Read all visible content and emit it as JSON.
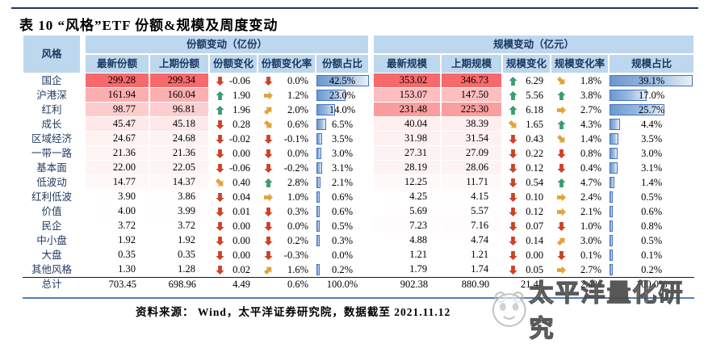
{
  "title": "表 10  “风格”ETF 份额&规模及周度变动",
  "footer": "资料来源： Wind，太平洋证券研究院，数据截至 2021.11.12",
  "watermark": "太平洋量化研究",
  "colors": {
    "header_bg": "#BDD7EE",
    "header_text": "#17375E",
    "heat_max": "#F8696B",
    "bar_border": "#4472C4",
    "arrow_up": "#3A9D6E",
    "arrow_down": "#CE4125",
    "arrow_mid": "#E3A33C",
    "top_rule": "#1F3864",
    "bottom_rule": "#4F81BD"
  },
  "table": {
    "style_header": "风格",
    "group_share": "份额变动（亿份）",
    "group_scale": "规模变动（亿元）",
    "share_headers": [
      "最新份额",
      "上期份额",
      "份额变化",
      "份额变化率",
      "份额占比"
    ],
    "scale_headers": [
      "最新规模",
      "上期规模",
      "规模变化",
      "规模变化率",
      "规模占比"
    ],
    "rows": [
      {
        "name": "国企",
        "s_new": "299.28",
        "s_prev": "299.34",
        "s_chg": "-0.06",
        "s_chg_ic": "down",
        "s_rate": "0.0%",
        "s_rate_ic": "down",
        "s_pct": "42.5%",
        "m_new": "353.02",
        "m_prev": "346.73",
        "m_chg": "6.29",
        "m_chg_ic": "up",
        "m_rate": "1.8%",
        "m_rate_ic": "se",
        "m_pct": "39.1%"
      },
      {
        "name": "沪港深",
        "s_new": "161.94",
        "s_prev": "160.04",
        "s_chg": "1.90",
        "s_chg_ic": "up",
        "s_rate": "1.2%",
        "s_rate_ic": "right",
        "s_pct": "23.0%",
        "m_new": "153.07",
        "m_prev": "147.50",
        "m_chg": "5.56",
        "m_chg_ic": "up",
        "m_rate": "3.8%",
        "m_rate_ic": "up",
        "m_pct": "17.0%"
      },
      {
        "name": "红利",
        "s_new": "98.77",
        "s_prev": "96.81",
        "s_chg": "1.96",
        "s_chg_ic": "up",
        "s_rate": "2.0%",
        "s_rate_ic": "ne",
        "s_pct": "14.0%",
        "m_new": "231.48",
        "m_prev": "225.30",
        "m_chg": "6.18",
        "m_chg_ic": "up",
        "m_rate": "2.7%",
        "m_rate_ic": "right",
        "m_pct": "25.7%"
      },
      {
        "name": "成长",
        "s_new": "45.47",
        "s_prev": "45.18",
        "s_chg": "0.28",
        "s_chg_ic": "down",
        "s_rate": "0.6%",
        "s_rate_ic": "se",
        "s_pct": "6.5%",
        "m_new": "40.04",
        "m_prev": "38.39",
        "m_chg": "1.65",
        "m_chg_ic": "se",
        "m_rate": "4.3%",
        "m_rate_ic": "up",
        "m_pct": "4.4%"
      },
      {
        "name": "区域经济",
        "s_new": "24.67",
        "s_prev": "24.68",
        "s_chg": "-0.02",
        "s_chg_ic": "down",
        "s_rate": "-0.1%",
        "s_rate_ic": "down",
        "s_pct": "3.5%",
        "m_new": "31.98",
        "m_prev": "31.54",
        "m_chg": "0.43",
        "m_chg_ic": "down",
        "m_rate": "1.4%",
        "m_rate_ic": "se",
        "m_pct": "3.5%"
      },
      {
        "name": "一带一路",
        "s_new": "21.36",
        "s_prev": "21.36",
        "s_chg": "0.00",
        "s_chg_ic": "down",
        "s_rate": "0.0%",
        "s_rate_ic": "down",
        "s_pct": "3.0%",
        "m_new": "27.31",
        "m_prev": "27.09",
        "m_chg": "0.22",
        "m_chg_ic": "down",
        "m_rate": "0.8%",
        "m_rate_ic": "down",
        "m_pct": "3.0%"
      },
      {
        "name": "基本面",
        "s_new": "22.00",
        "s_prev": "22.05",
        "s_chg": "-0.06",
        "s_chg_ic": "down",
        "s_rate": "-0.2%",
        "s_rate_ic": "down",
        "s_pct": "3.1%",
        "m_new": "28.19",
        "m_prev": "28.06",
        "m_chg": "0.12",
        "m_chg_ic": "down",
        "m_rate": "0.4%",
        "m_rate_ic": "down",
        "m_pct": "3.1%"
      },
      {
        "name": "低波动",
        "s_new": "14.77",
        "s_prev": "14.37",
        "s_chg": "0.40",
        "s_chg_ic": "se",
        "s_rate": "2.8%",
        "s_rate_ic": "up",
        "s_pct": "2.1%",
        "m_new": "12.25",
        "m_prev": "11.71",
        "m_chg": "0.54",
        "m_chg_ic": "down",
        "m_rate": "4.7%",
        "m_rate_ic": "up",
        "m_pct": "1.4%"
      },
      {
        "name": "红利低波",
        "s_new": "3.90",
        "s_prev": "3.86",
        "s_chg": "0.04",
        "s_chg_ic": "down",
        "s_rate": "1.0%",
        "s_rate_ic": "right",
        "s_pct": "0.6%",
        "m_new": "4.25",
        "m_prev": "4.15",
        "m_chg": "0.10",
        "m_chg_ic": "down",
        "m_rate": "2.4%",
        "m_rate_ic": "right",
        "m_pct": "0.5%"
      },
      {
        "name": "价值",
        "s_new": "4.00",
        "s_prev": "3.99",
        "s_chg": "0.01",
        "s_chg_ic": "down",
        "s_rate": "0.3%",
        "s_rate_ic": "down",
        "s_pct": "0.6%",
        "m_new": "5.69",
        "m_prev": "5.57",
        "m_chg": "0.12",
        "m_chg_ic": "down",
        "m_rate": "2.1%",
        "m_rate_ic": "right",
        "m_pct": "0.6%"
      },
      {
        "name": "民企",
        "s_new": "3.72",
        "s_prev": "3.72",
        "s_chg": "0.00",
        "s_chg_ic": "down",
        "s_rate": "0.0%",
        "s_rate_ic": "down",
        "s_pct": "0.5%",
        "m_new": "7.23",
        "m_prev": "7.16",
        "m_chg": "0.07",
        "m_chg_ic": "down",
        "m_rate": "1.0%",
        "m_rate_ic": "down",
        "m_pct": "0.8%"
      },
      {
        "name": "中小盘",
        "s_new": "1.92",
        "s_prev": "1.92",
        "s_chg": "0.00",
        "s_chg_ic": "down",
        "s_rate": "0.2%",
        "s_rate_ic": "down",
        "s_pct": "0.3%",
        "m_new": "4.88",
        "m_prev": "4.74",
        "m_chg": "0.14",
        "m_chg_ic": "down",
        "m_rate": "3.0%",
        "m_rate_ic": "ne",
        "m_pct": "0.5%"
      },
      {
        "name": "大盘",
        "s_new": "0.35",
        "s_prev": "0.35",
        "s_chg": "0.00",
        "s_chg_ic": "down",
        "s_rate": "-0.3%",
        "s_rate_ic": "down",
        "s_pct": "0.0%",
        "m_new": "1.21",
        "m_prev": "1.21",
        "m_chg": "0.00",
        "m_chg_ic": "down",
        "m_rate": "0.1%",
        "m_rate_ic": "down",
        "m_pct": "0.1%"
      },
      {
        "name": "其他风格",
        "s_new": "1.30",
        "s_prev": "1.28",
        "s_chg": "0.02",
        "s_chg_ic": "down",
        "s_rate": "1.6%",
        "s_rate_ic": "ne",
        "s_pct": "0.2%",
        "m_new": "1.79",
        "m_prev": "1.74",
        "m_chg": "0.05",
        "m_chg_ic": "down",
        "m_rate": "2.7%",
        "m_rate_ic": "right",
        "m_pct": "0.2%"
      }
    ],
    "total": {
      "name": "总计",
      "s_new": "703.45",
      "s_prev": "698.96",
      "s_chg": "4.49",
      "s_chg_ic": null,
      "s_rate": "0.6%",
      "s_rate_ic": null,
      "s_pct": "100.0%",
      "m_new": "902.38",
      "m_prev": "880.90",
      "m_chg": "21.48",
      "m_chg_ic": null,
      "m_rate": "2.4%",
      "m_rate_ic": null,
      "m_pct": "100.0%"
    }
  }
}
